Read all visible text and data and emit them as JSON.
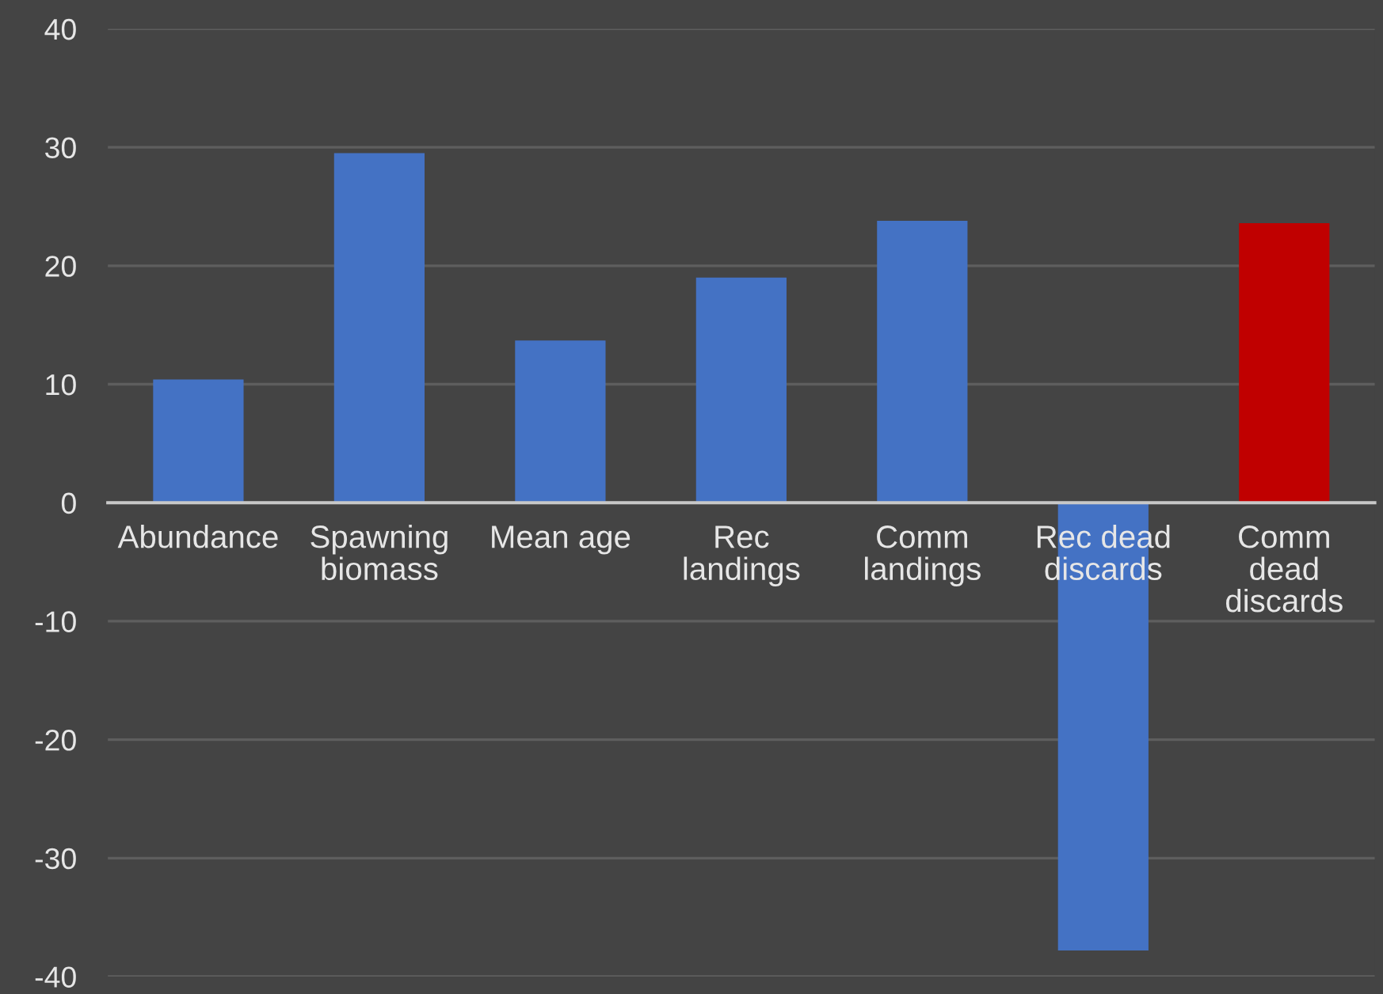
{
  "chart_data": {
    "type": "bar",
    "categories": [
      "Abundance",
      "Spawning\nbiomass",
      "Mean age",
      "Rec\nlandings",
      "Comm\nlandings",
      "Rec dead\ndiscards",
      "Comm\ndead\ndiscards"
    ],
    "values": [
      10.4,
      29.5,
      13.7,
      19.0,
      23.8,
      -37.8,
      23.6
    ],
    "colors": [
      "#4472c4",
      "#4472c4",
      "#4472c4",
      "#4472c4",
      "#4472c4",
      "#4472c4",
      "#c00000"
    ],
    "ylim": [
      -40,
      40
    ],
    "yticks": [
      -40,
      -30,
      -20,
      -10,
      0,
      10,
      20,
      30,
      40
    ],
    "grid": "y"
  }
}
